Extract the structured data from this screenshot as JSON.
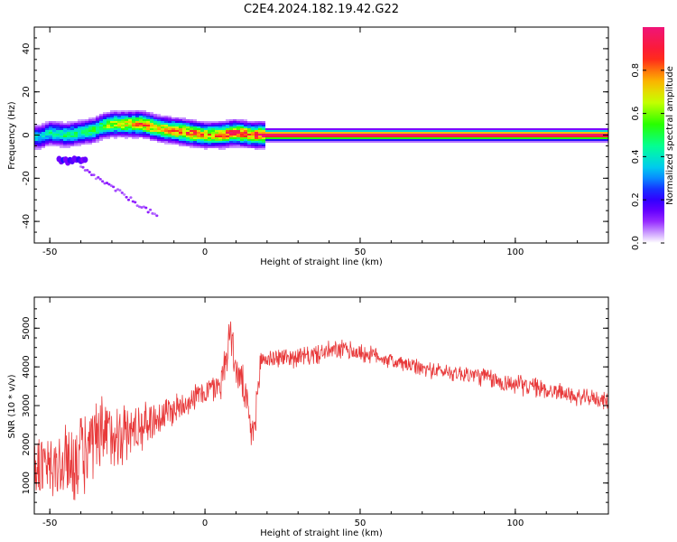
{
  "title": "C2E4.2024.182.19.42.G22",
  "chart_data": [
    {
      "type": "heatmap",
      "xlabel": "Height of straight line (km)",
      "ylabel": "Frequency (Hz)",
      "xlim": [
        -55,
        130
      ],
      "ylim": [
        -50,
        50
      ],
      "x_ticks": [
        -50,
        0,
        50,
        100
      ],
      "y_ticks": [
        40,
        20,
        0,
        -20,
        -40
      ],
      "colorbar": {
        "label": "Normalized spectral amplitude",
        "range": [
          0.0,
          1.0
        ],
        "ticks": [
          0.0,
          0.2,
          0.4,
          0.6,
          0.8
        ],
        "tick_labels": [
          "0.0",
          "0.2",
          "0.4",
          "0.6",
          "0.8"
        ]
      },
      "ridge": {
        "x": [
          -53,
          -50,
          -45,
          -40,
          -36,
          -33,
          -30,
          -25,
          -20,
          -15,
          -10,
          -5,
          0,
          5,
          10,
          15,
          20,
          40,
          60,
          80,
          100,
          130
        ],
        "frequency": [
          -1,
          1,
          0,
          1,
          2,
          4,
          5,
          5,
          5,
          3,
          2,
          1,
          0,
          0,
          1,
          0,
          0,
          0,
          0,
          0,
          0,
          0
        ],
        "amplitude": [
          0.4,
          0.45,
          0.5,
          0.5,
          0.55,
          0.6,
          0.7,
          0.75,
          0.85,
          0.8,
          0.85,
          0.9,
          0.8,
          0.85,
          0.95,
          0.9,
          1.0,
          1.0,
          1.0,
          1.0,
          1.0,
          1.0
        ]
      },
      "secondary_features": [
        {
          "x_range": [
            -47,
            -38
          ],
          "frequency": -12,
          "amplitude": 0.2
        },
        {
          "x_range": [
            -40,
            -15
          ],
          "frequency_range": [
            -15,
            -38
          ],
          "amplitude": 0.1
        }
      ]
    },
    {
      "type": "line",
      "xlabel": "Height of straight line (km)",
      "ylabel": "SNR (10 * v/v)",
      "xlim": [
        -55,
        130
      ],
      "ylim": [
        200,
        5800
      ],
      "x_ticks": [
        -50,
        0,
        50,
        100
      ],
      "y_ticks": [
        1000,
        2000,
        3000,
        4000,
        5000
      ],
      "series": [
        {
          "color": "#e8393a",
          "noise_model": "random",
          "x": [
            -55,
            -50,
            -45,
            -40,
            -35,
            -30,
            -25,
            -20,
            -15,
            -10,
            -5,
            0,
            5,
            7,
            8,
            10,
            12,
            14,
            15,
            16,
            17,
            18,
            20,
            25,
            30,
            35,
            40,
            45,
            50,
            55,
            60,
            65,
            70,
            75,
            80,
            85,
            90,
            95,
            100,
            105,
            110,
            115,
            120,
            125,
            130
          ],
          "mean": [
            1500,
            1300,
            1500,
            1700,
            2000,
            2300,
            2300,
            2500,
            2700,
            2900,
            3150,
            3350,
            3550,
            4300,
            5000,
            3900,
            3600,
            2800,
            2200,
            2500,
            3300,
            4200,
            4200,
            4250,
            4250,
            4300,
            4400,
            4450,
            4350,
            4300,
            4150,
            4050,
            3950,
            3900,
            3850,
            3800,
            3750,
            3600,
            3550,
            3500,
            3400,
            3350,
            3200,
            3200,
            3100
          ],
          "spread": [
            1100,
            1100,
            1200,
            1300,
            1300,
            1200,
            900,
            700,
            600,
            500,
            400,
            400,
            500,
            700,
            600,
            500,
            600,
            500,
            500,
            500,
            500,
            500,
            300,
            300,
            300,
            300,
            300,
            300,
            300,
            250,
            250,
            250,
            250,
            250,
            250,
            300,
            300,
            300,
            300,
            300,
            300,
            250,
            250,
            250,
            250
          ]
        }
      ]
    }
  ]
}
